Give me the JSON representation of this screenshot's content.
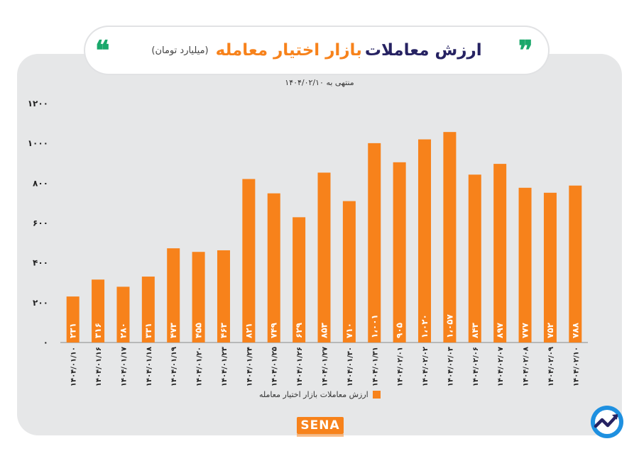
{
  "header": {
    "title_main": "ارزش معاملات",
    "title_accent": "بازار اختیار معامله",
    "title_unit": "(میلیارد تومان)",
    "subtitle": "منتهی به ۱۴۰۴/۰۲/۱۰"
  },
  "legend": {
    "label": "ارزش معاملات بازار اختیار معامله"
  },
  "brand": {
    "logo_text": "SENA"
  },
  "colors": {
    "bar": "#f7821b",
    "title": "#262262",
    "quote": "#1aa86b",
    "card": "#e6e7e8"
  },
  "chart_data": {
    "type": "bar",
    "title": "ارزش معاملات بازار اختیار معامله (میلیارد تومان)",
    "subtitle": "منتهی به ۱۴۰۴/۰۲/۱۰",
    "series_name": "ارزش معاملات بازار اختیار معامله",
    "categories": [
      "۱۴۰۴/۰۱/۱۰",
      "۱۴۰۴/۰۱/۱۶",
      "۱۴۰۴/۰۱/۱۷",
      "۱۴۰۴/۰۱/۱۸",
      "۱۴۰۴/۰۱/۱۹",
      "۱۴۰۴/۰۱/۲۰",
      "۱۴۰۴/۰۱/۲۳",
      "۱۴۰۴/۰۱/۲۴",
      "۱۴۰۴/۰۱/۲۵",
      "۱۴۰۴/۰۱/۲۶",
      "۱۴۰۴/۰۱/۲۷",
      "۱۴۰۴/۰۱/۳۰",
      "۱۴۰۴/۰۱/۳۱",
      "۱۴۰۴/۰۲/۰۱",
      "۱۴۰۴/۰۲/۰۲",
      "۱۴۰۴/۰۲/۰۳",
      "۱۴۰۴/۰۲/۰۶",
      "۱۴۰۴/۰۲/۰۷",
      "۱۴۰۴/۰۲/۰۸",
      "۱۴۰۴/۰۲/۰۹",
      "۱۴۰۴/۰۲/۱۰"
    ],
    "values": [
      231,
      316,
      280,
      331,
      473,
      455,
      463,
      821,
      749,
      629,
      853,
      710,
      1001,
      905,
      1020,
      1057,
      843,
      897,
      777,
      752,
      788
    ],
    "value_labels": [
      "۲۳۱",
      "۳۱۶",
      "۲۸۰",
      "۳۳۱",
      "۴۷۳",
      "۴۵۵",
      "۴۶۳",
      "۸۲۱",
      "۷۴۹",
      "۶۲۹",
      "۸۵۳",
      "۷۱۰",
      "۱،۰۰۱",
      "۹۰۵",
      "۱،۰۲۰",
      "۱،۰۵۷",
      "۸۴۳",
      "۸۹۷",
      "۷۷۷",
      "۷۵۲",
      "۷۸۸"
    ],
    "y_ticks": [
      0,
      200,
      400,
      600,
      800,
      1000,
      1200
    ],
    "y_tick_labels": [
      "۰",
      "۲۰۰",
      "۴۰۰",
      "۶۰۰",
      "۸۰۰",
      "۱۰۰۰",
      "۱۲۰۰"
    ],
    "ylim": [
      0,
      1200
    ],
    "xlabel": "",
    "ylabel": "",
    "grid": false,
    "legend_position": "bottom"
  }
}
